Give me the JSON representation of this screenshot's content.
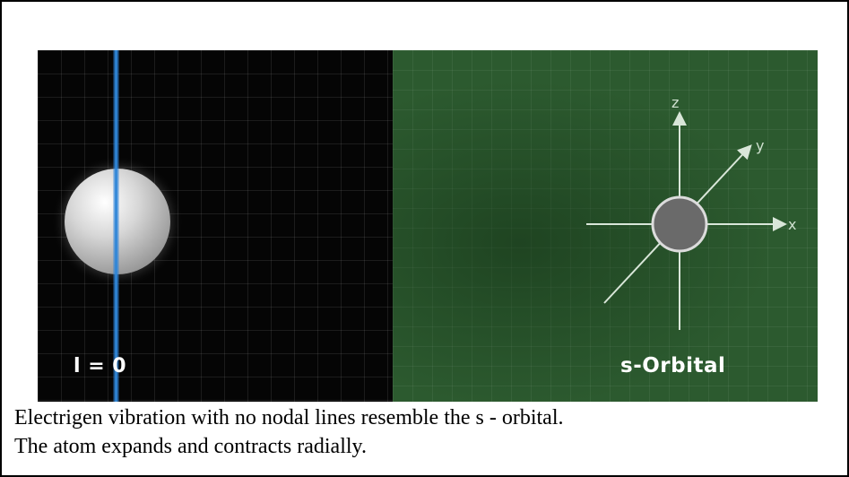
{
  "figure": {
    "left_panel": {
      "label": "l = 0",
      "background_color": "#050505",
      "beam_color": "#2f86d8",
      "sphere_color": "#d7d7d7"
    },
    "right_panel": {
      "label": "s-Orbital",
      "background_color": "#2c5a2f",
      "orbital_color": "#6a6a6a",
      "axis_labels": {
        "x": "x",
        "y": "y",
        "z": "z"
      }
    }
  },
  "caption": {
    "line1": "Electrigen vibration with no nodal lines resemble the s - orbital.",
    "line2": "The atom expands and contracts radially."
  }
}
